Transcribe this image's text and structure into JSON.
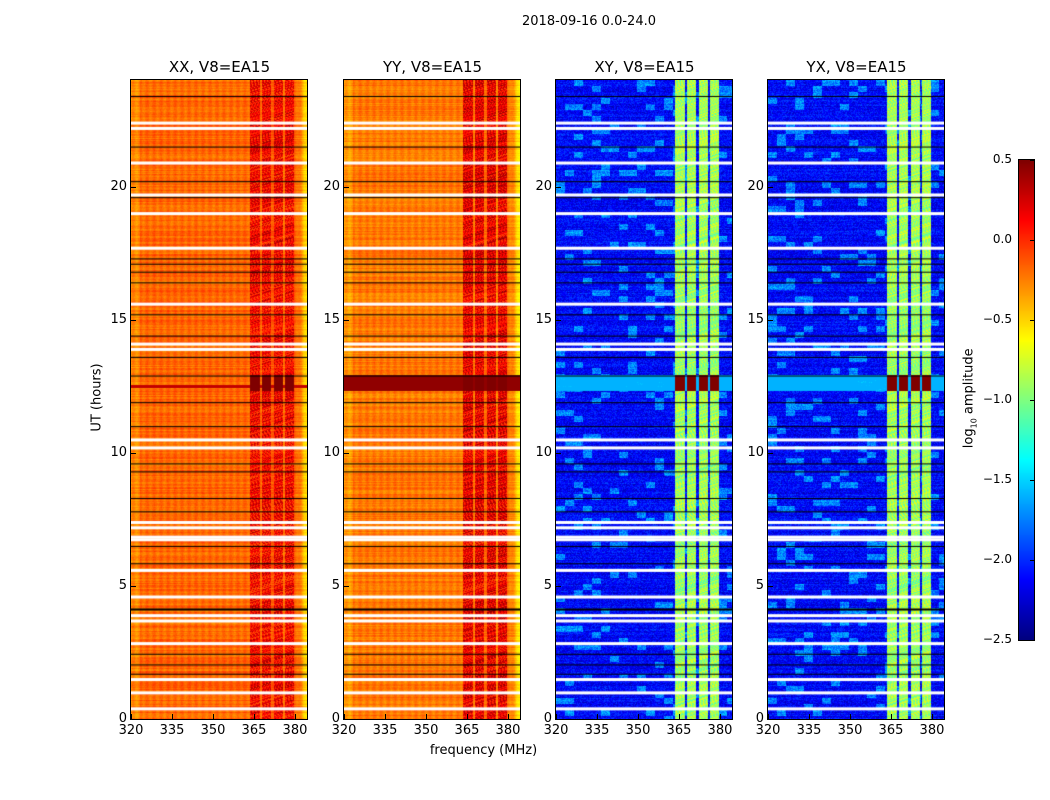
{
  "title": "2018-09-16 0.0-24.0",
  "chart_data": {
    "type": "heatmap",
    "title": "2018-09-16 0.0-24.0",
    "xlabel": "frequency (MHz)",
    "ylabel": "UT (hours)",
    "xlim": [
      320,
      384.4
    ],
    "ylim": [
      0,
      24
    ],
    "xticks": [
      320,
      335,
      350,
      365,
      380
    ],
    "yticks": [
      0,
      5,
      10,
      15,
      20
    ],
    "panels": [
      {
        "title": "XX, V8=EA15",
        "base_level": -0.25,
        "rfi_level": 0.05,
        "burst_level": 0.5
      },
      {
        "title": "YY, V8=EA15",
        "base_level": -0.3,
        "rfi_level": 0.1,
        "burst_level": 0.5
      },
      {
        "title": "XY, V8=EA15",
        "base_level": -2.2,
        "rfi_level": -0.9,
        "burst_level": 0.5
      },
      {
        "title": "YX, V8=EA15",
        "base_level": -2.2,
        "rfi_level": -0.9,
        "burst_level": 0.5
      }
    ],
    "rfi_channels_mhz": [
      [
        363.5,
        367
      ],
      [
        367.8,
        371.2
      ],
      [
        372,
        375.3
      ],
      [
        376.2,
        379.6
      ]
    ],
    "burst_hours": [
      12.35,
      12.95
    ],
    "flagged_hours": [
      22.4,
      22.2,
      20.9,
      19.7,
      19.0,
      17.7,
      15.6,
      14.1,
      13.9,
      10.5,
      10.2,
      7.4,
      7.2,
      6.85,
      6.75,
      5.6,
      4.6,
      3.9,
      3.7,
      2.85,
      1.5,
      1.0,
      0.4
    ],
    "gap_lines_hours": [
      23.4,
      21.5,
      20.2,
      19.6,
      17.3,
      17.1,
      16.8,
      16.4,
      15.2,
      14.4,
      13.6,
      12.9,
      11.9,
      11.0,
      9.6,
      9.3,
      8.3,
      7.8,
      6.5,
      5.85,
      4.15,
      2.45,
      2.05,
      1.7
    ],
    "colorbar": {
      "label": "log10 amplitude",
      "label_main": "log",
      "label_sub": "10",
      "label_rest": " amplitude",
      "range": [
        -2.5,
        0.5
      ],
      "ticks": [
        "0.5",
        "0.0",
        "−0.5",
        "−1.0",
        "−1.5",
        "−2.0",
        "−2.5"
      ],
      "colormap": "jet"
    }
  }
}
